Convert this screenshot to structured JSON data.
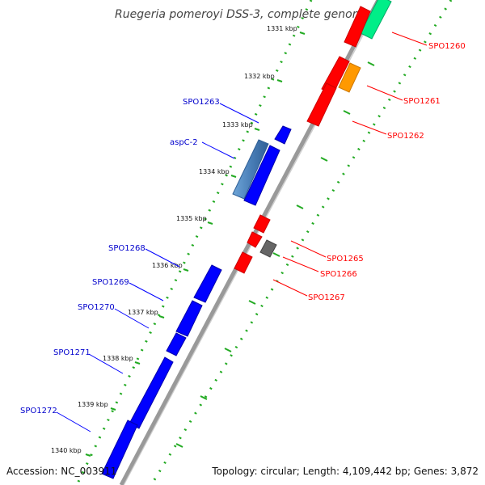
{
  "title": "Ruegeria pomeroyi DSS-3, complete genome",
  "accession": "Accession: NC_003911",
  "summary": "Topology: circular; Length: 4,109,442 bp; Genes: 3,872",
  "kbp_ticks": [
    "1331 kbp",
    "1332 kbp",
    "1333 kbp",
    "1334 kbp",
    "1335 kbp",
    "1336 kbp",
    "1337 kbp",
    "1338 kbp",
    "1339 kbp",
    "1340 kbp"
  ],
  "genes_forward": [
    "SPO1260",
    "SPO1261",
    "SPO1262",
    "SPO1265",
    "SPO1266",
    "SPO1267"
  ],
  "genes_reverse": [
    "SPO1263",
    "aspC-2",
    "SPO1268",
    "SPO1269",
    "SPO1270",
    "SPO1271",
    "SPO1272"
  ],
  "colors": {
    "forward_cds": "#ff0000",
    "reverse_cds": "#0000ff",
    "rna": "#00ee88",
    "orange_feature": "#ff9900",
    "gray_feature": "#666666",
    "highlight_feature": "#4a7fb8",
    "tick": "#22aa22",
    "backbone": "#999999"
  }
}
